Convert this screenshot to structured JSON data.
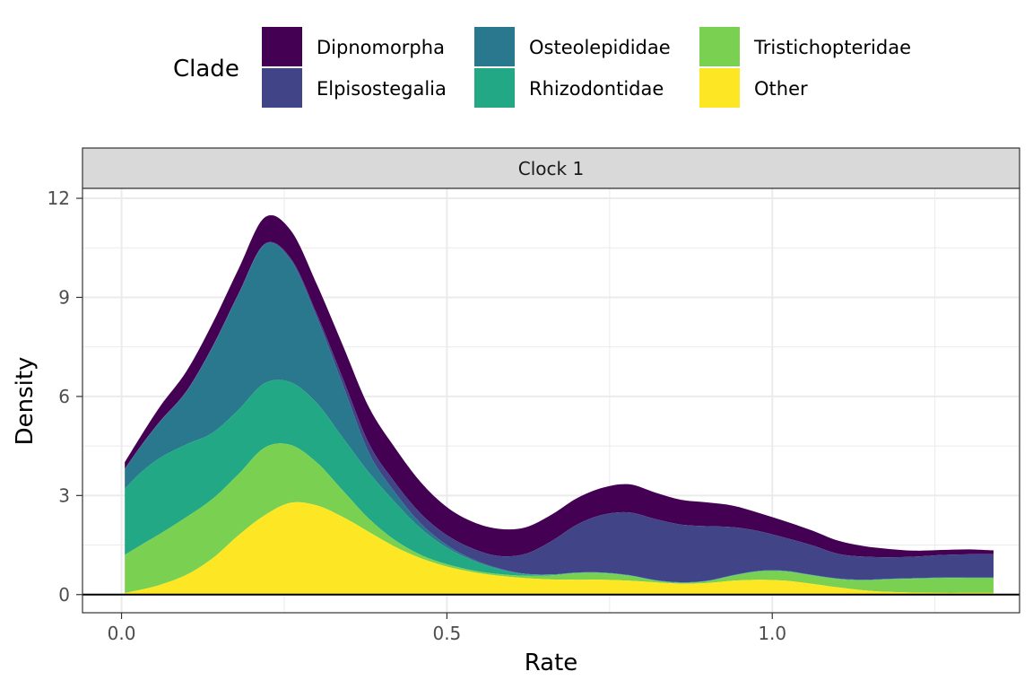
{
  "chart_data": {
    "type": "area",
    "stacked": true,
    "facet": "Clock 1",
    "xlabel": "Rate",
    "ylabel": "Density",
    "xlim": [
      -0.06,
      1.38
    ],
    "ylim": [
      -0.55,
      12.3
    ],
    "xticks": [
      0.0,
      0.5,
      1.0
    ],
    "xtick_labels": [
      "0.0",
      "0.5",
      "1.0"
    ],
    "yticks": [
      0,
      3,
      6,
      9,
      12
    ],
    "ytick_labels": [
      "0",
      "3",
      "6",
      "9",
      "12"
    ],
    "grid": true,
    "legend_title": "Clade",
    "legend_position": "top",
    "x": [
      0.005,
      0.03,
      0.06,
      0.1,
      0.14,
      0.18,
      0.22,
      0.26,
      0.3,
      0.34,
      0.38,
      0.42,
      0.46,
      0.5,
      0.54,
      0.58,
      0.62,
      0.66,
      0.7,
      0.74,
      0.78,
      0.82,
      0.86,
      0.9,
      0.94,
      0.98,
      1.02,
      1.06,
      1.1,
      1.14,
      1.18,
      1.22,
      1.26,
      1.3,
      1.34
    ],
    "series": [
      {
        "name": "Other",
        "color": "#FDE725",
        "values": [
          0.05,
          0.15,
          0.3,
          0.6,
          1.1,
          1.8,
          2.4,
          2.78,
          2.7,
          2.35,
          1.9,
          1.45,
          1.1,
          0.85,
          0.68,
          0.57,
          0.5,
          0.46,
          0.45,
          0.45,
          0.42,
          0.37,
          0.33,
          0.35,
          0.42,
          0.45,
          0.42,
          0.33,
          0.22,
          0.13,
          0.08,
          0.06,
          0.05,
          0.05,
          0.05
        ]
      },
      {
        "name": "Tristichopteridae",
        "color": "#7AD151",
        "values": [
          1.15,
          1.35,
          1.55,
          1.75,
          1.8,
          1.85,
          2.05,
          1.75,
          1.3,
          0.8,
          0.4,
          0.2,
          0.1,
          0.07,
          0.05,
          0.05,
          0.07,
          0.12,
          0.2,
          0.2,
          0.15,
          0.05,
          0.02,
          0.05,
          0.15,
          0.25,
          0.28,
          0.25,
          0.25,
          0.3,
          0.38,
          0.42,
          0.45,
          0.45,
          0.45
        ]
      },
      {
        "name": "Rhizodontidae",
        "color": "#22A884",
        "values": [
          2.0,
          2.2,
          2.3,
          2.2,
          2.0,
          1.95,
          1.95,
          1.9,
          1.8,
          1.6,
          1.4,
          1.15,
          0.8,
          0.5,
          0.3,
          0.15,
          0.05,
          0.02,
          0.01,
          0.01,
          0.01,
          0.01,
          0.01,
          0.01,
          0.01,
          0.01,
          0.01,
          0.01,
          0.01,
          0.01,
          0.01,
          0.01,
          0.01,
          0.01,
          0.01
        ]
      },
      {
        "name": "Osteolepididae",
        "color": "#2A788E",
        "values": [
          0.6,
          0.8,
          1.1,
          1.6,
          2.6,
          3.5,
          4.2,
          3.7,
          2.6,
          1.6,
          0.6,
          0.3,
          0.15,
          0.08,
          0.04,
          0.02,
          0.01,
          0.01,
          0.01,
          0.01,
          0.01,
          0.01,
          0.01,
          0.01,
          0.01,
          0.01,
          0.01,
          0.01,
          0.01,
          0.01,
          0.01,
          0.01,
          0.01,
          0.01,
          0.01
        ]
      },
      {
        "name": "Elpisostegalia",
        "color": "#414487",
        "values": [
          0.01,
          0.01,
          0.02,
          0.02,
          0.02,
          0.02,
          0.02,
          0.05,
          0.1,
          0.2,
          0.28,
          0.3,
          0.3,
          0.3,
          0.32,
          0.38,
          0.6,
          1.0,
          1.45,
          1.75,
          1.9,
          1.85,
          1.75,
          1.65,
          1.45,
          1.2,
          1.0,
          0.9,
          0.75,
          0.7,
          0.65,
          0.65,
          0.68,
          0.7,
          0.7
        ]
      },
      {
        "name": "Dipnomorpha",
        "color": "#440154",
        "values": [
          0.2,
          0.3,
          0.45,
          0.6,
          0.7,
          0.75,
          0.8,
          0.85,
          0.9,
          1.0,
          1.1,
          1.05,
          0.95,
          0.85,
          0.81,
          0.82,
          0.8,
          0.8,
          0.8,
          0.82,
          0.85,
          0.8,
          0.75,
          0.72,
          0.65,
          0.55,
          0.5,
          0.45,
          0.4,
          0.32,
          0.25,
          0.18,
          0.15,
          0.15,
          0.12
        ]
      }
    ],
    "legend_entries": [
      {
        "name": "Dipnomorpha",
        "color": "#440154"
      },
      {
        "name": "Elpisostegalia",
        "color": "#414487"
      },
      {
        "name": "Osteolepididae",
        "color": "#2A788E"
      },
      {
        "name": "Rhizodontidae",
        "color": "#22A884"
      },
      {
        "name": "Tristichopteridae",
        "color": "#7AD151"
      },
      {
        "name": "Other",
        "color": "#FDE725"
      }
    ]
  }
}
